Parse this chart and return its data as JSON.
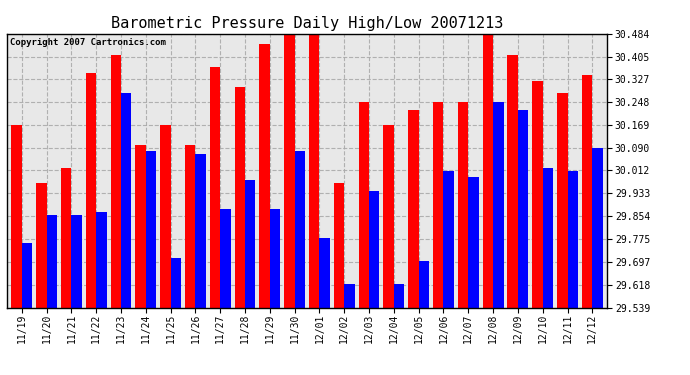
{
  "title": "Barometric Pressure Daily High/Low 20071213",
  "copyright": "Copyright 2007 Cartronics.com",
  "dates": [
    "11/19",
    "11/20",
    "11/21",
    "11/22",
    "11/23",
    "11/24",
    "11/25",
    "11/26",
    "11/27",
    "11/28",
    "11/29",
    "11/30",
    "12/01",
    "12/02",
    "12/03",
    "12/04",
    "12/05",
    "12/06",
    "12/07",
    "12/08",
    "12/09",
    "12/10",
    "12/11",
    "12/12"
  ],
  "highs": [
    30.17,
    29.97,
    30.02,
    30.35,
    30.41,
    30.1,
    30.17,
    30.1,
    30.37,
    30.3,
    30.45,
    30.48,
    30.48,
    29.97,
    30.25,
    30.17,
    30.22,
    30.25,
    30.25,
    30.48,
    30.41,
    30.32,
    30.28,
    30.34
  ],
  "lows": [
    29.76,
    29.86,
    29.86,
    29.87,
    30.28,
    30.08,
    29.71,
    30.07,
    29.88,
    29.98,
    29.88,
    30.08,
    29.78,
    29.62,
    29.94,
    29.62,
    29.7,
    30.01,
    29.99,
    30.25,
    30.22,
    30.02,
    30.01,
    30.09
  ],
  "ymin": 29.539,
  "ymax": 30.484,
  "yticks": [
    29.539,
    29.618,
    29.697,
    29.775,
    29.854,
    29.933,
    30.012,
    30.09,
    30.169,
    30.248,
    30.327,
    30.405,
    30.484
  ],
  "high_color": "#ff0000",
  "low_color": "#0000ff",
  "bg_color": "#ffffff",
  "plot_bg_color": "#e8e8e8",
  "grid_color": "#aaaaaa",
  "bar_width": 0.42,
  "title_fontsize": 11,
  "tick_fontsize": 7,
  "copyright_fontsize": 6.5
}
